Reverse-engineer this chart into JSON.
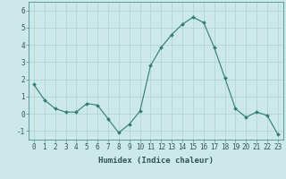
{
  "x": [
    0,
    1,
    2,
    3,
    4,
    5,
    6,
    7,
    8,
    9,
    10,
    11,
    12,
    13,
    14,
    15,
    16,
    17,
    18,
    19,
    20,
    21,
    22,
    23
  ],
  "y": [
    1.7,
    0.8,
    0.3,
    0.1,
    0.1,
    0.6,
    0.5,
    -0.3,
    -1.1,
    -0.6,
    0.15,
    2.8,
    3.85,
    4.6,
    5.2,
    5.6,
    5.3,
    3.85,
    2.1,
    0.3,
    -0.2,
    0.1,
    -0.1,
    -1.2
  ],
  "line_color": "#2e7d6e",
  "marker": "D",
  "marker_size": 2,
  "background_color": "#cce8e8",
  "grid_color": "#b0d0d0",
  "xlabel": "Humidex (Indice chaleur)",
  "ylabel": "",
  "title": "",
  "ylim": [
    -1.5,
    6.5
  ],
  "xlim": [
    -0.5,
    23.5
  ],
  "yticks": [
    -1,
    0,
    1,
    2,
    3,
    4,
    5,
    6
  ],
  "xticks": [
    0,
    1,
    2,
    3,
    4,
    5,
    6,
    7,
    8,
    9,
    10,
    11,
    12,
    13,
    14,
    15,
    16,
    17,
    18,
    19,
    20,
    21,
    22,
    23
  ],
  "tick_label_fontsize": 5.5,
  "xlabel_fontsize": 6.5
}
